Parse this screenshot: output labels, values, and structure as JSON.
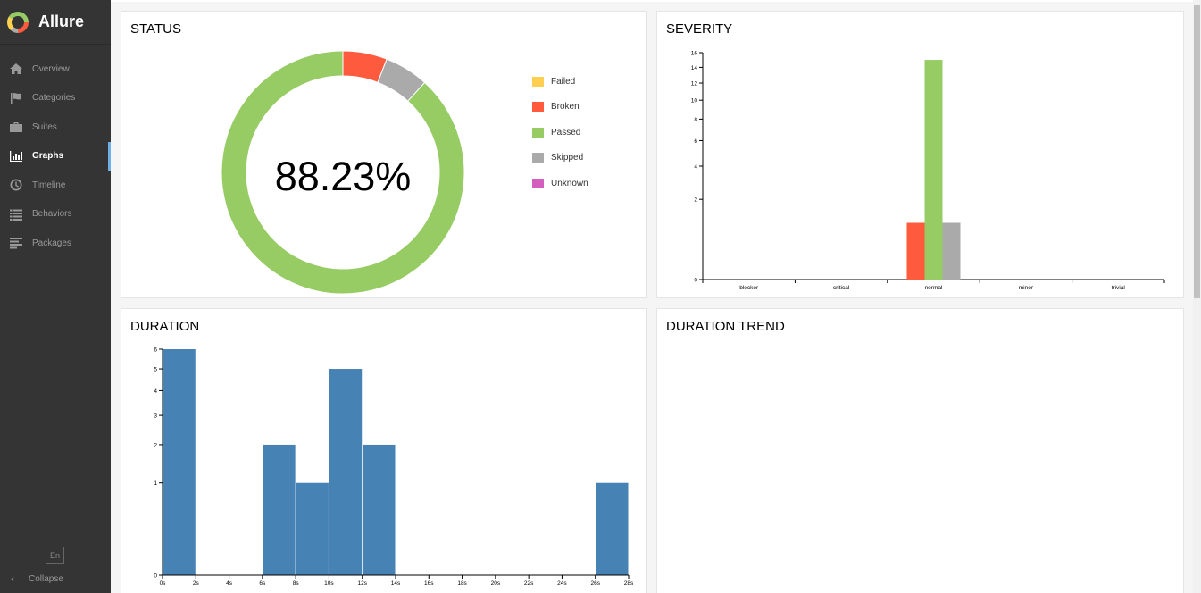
{
  "app": {
    "title": "Allure"
  },
  "sidebar": {
    "items": [
      {
        "label": "Overview",
        "icon": "home-icon"
      },
      {
        "label": "Categories",
        "icon": "flag-icon"
      },
      {
        "label": "Suites",
        "icon": "briefcase-icon"
      },
      {
        "label": "Graphs",
        "icon": "bar-chart-icon",
        "active": true
      },
      {
        "label": "Timeline",
        "icon": "clock-icon"
      },
      {
        "label": "Behaviors",
        "icon": "list-icon"
      },
      {
        "label": "Packages",
        "icon": "align-left-icon"
      }
    ],
    "language": "En",
    "collapse_label": "Collapse"
  },
  "status": {
    "title": "STATUS",
    "percent_label": "88.23%",
    "legend": [
      {
        "label": "Failed",
        "color": "#ffd050"
      },
      {
        "label": "Broken",
        "color": "#fd5a3e"
      },
      {
        "label": "Passed",
        "color": "#97cc64"
      },
      {
        "label": "Skipped",
        "color": "#aaaaaa"
      },
      {
        "label": "Unknown",
        "color": "#d35ebe"
      }
    ]
  },
  "severity": {
    "title": "SEVERITY"
  },
  "duration": {
    "title": "DURATION"
  },
  "duration_trend": {
    "title": "DURATION TREND"
  },
  "chart_data": [
    {
      "type": "pie",
      "title": "STATUS",
      "center_label": "88.23%",
      "categories": [
        "Failed",
        "Broken",
        "Passed",
        "Skipped",
        "Unknown"
      ],
      "values": [
        0,
        1,
        15,
        1,
        0
      ],
      "colors": [
        "#ffd050",
        "#fd5a3e",
        "#97cc64",
        "#aaaaaa",
        "#d35ebe"
      ]
    },
    {
      "type": "bar",
      "title": "SEVERITY",
      "categories": [
        "blocker",
        "critical",
        "normal",
        "minor",
        "trivial"
      ],
      "series": [
        {
          "name": "Failed",
          "color": "#ffd050",
          "values": [
            0,
            0,
            0,
            0,
            0
          ]
        },
        {
          "name": "Broken",
          "color": "#fd5a3e",
          "values": [
            0,
            0,
            1,
            0,
            0
          ]
        },
        {
          "name": "Passed",
          "color": "#97cc64",
          "values": [
            0,
            0,
            15,
            0,
            0
          ]
        },
        {
          "name": "Skipped",
          "color": "#aaaaaa",
          "values": [
            0,
            0,
            1,
            0,
            0
          ]
        },
        {
          "name": "Unknown",
          "color": "#d35ebe",
          "values": [
            0,
            0,
            0,
            0,
            0
          ]
        }
      ],
      "yscale": "sqrt",
      "ylim": [
        0,
        16
      ],
      "yticks": [
        0,
        2,
        4,
        6,
        8,
        10,
        12,
        14,
        16
      ]
    },
    {
      "type": "bar",
      "title": "DURATION",
      "bins": [
        [
          0,
          2
        ],
        [
          6,
          8
        ],
        [
          8,
          10
        ],
        [
          10,
          12
        ],
        [
          12,
          14
        ],
        [
          26,
          28
        ]
      ],
      "values": [
        6,
        2,
        1,
        5,
        2,
        1
      ],
      "color": "#4682b4",
      "xticks": [
        "0s",
        "2s",
        "4s",
        "6s",
        "8s",
        "10s",
        "12s",
        "14s",
        "16s",
        "18s",
        "20s",
        "22s",
        "24s",
        "26s",
        "28s"
      ],
      "xlim": [
        0,
        28
      ],
      "yscale": "sqrt",
      "ylim": [
        0,
        6
      ],
      "yticks": [
        0,
        1,
        2,
        3,
        4,
        5,
        6
      ]
    }
  ]
}
